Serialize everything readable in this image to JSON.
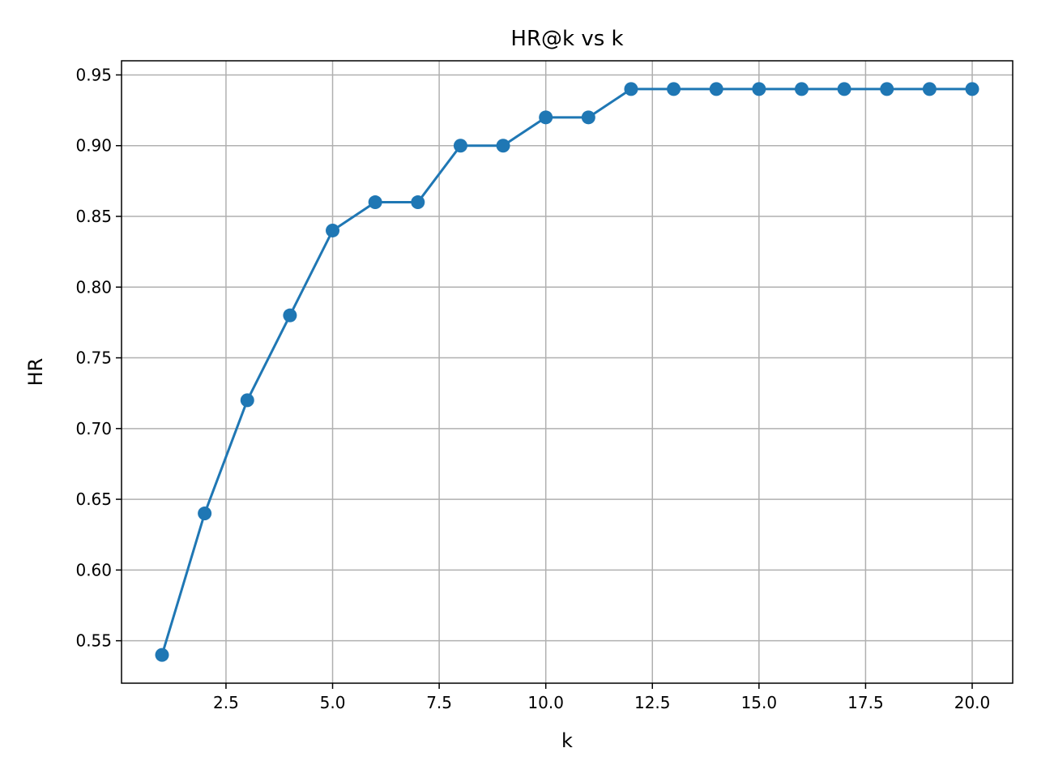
{
  "chart_data": {
    "type": "line",
    "title": "HR@k vs k",
    "xlabel": "k",
    "ylabel": "HR",
    "xlim": [
      0.05,
      20.95
    ],
    "ylim": [
      0.52,
      0.96
    ],
    "xticks": [
      2.5,
      5.0,
      7.5,
      10.0,
      12.5,
      15.0,
      17.5,
      20.0
    ],
    "xtick_labels": [
      "2.5",
      "5.0",
      "7.5",
      "10.0",
      "12.5",
      "15.0",
      "17.5",
      "20.0"
    ],
    "yticks": [
      0.55,
      0.6,
      0.65,
      0.7,
      0.75,
      0.8,
      0.85,
      0.9,
      0.95
    ],
    "ytick_labels": [
      "0.55",
      "0.60",
      "0.65",
      "0.70",
      "0.75",
      "0.80",
      "0.85",
      "0.90",
      "0.95"
    ],
    "grid": true,
    "series": [
      {
        "color": "#1f77b4",
        "marker": "circle",
        "x": [
          1,
          2,
          3,
          4,
          5,
          6,
          7,
          8,
          9,
          10,
          11,
          12,
          13,
          14,
          15,
          16,
          17,
          18,
          19,
          20
        ],
        "y": [
          0.54,
          0.64,
          0.72,
          0.78,
          0.84,
          0.86,
          0.86,
          0.9,
          0.9,
          0.92,
          0.92,
          0.94,
          0.94,
          0.94,
          0.94,
          0.94,
          0.94,
          0.94,
          0.94,
          0.94
        ]
      }
    ]
  }
}
